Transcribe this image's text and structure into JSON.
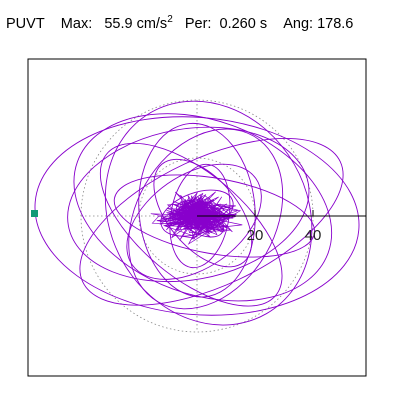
{
  "header": {
    "label": "PUVT",
    "max_label": "Max:",
    "max_value": "55.9",
    "max_unit_base": "cm/s",
    "max_unit_exp": "2",
    "per_label": "Per:",
    "per_value": "0.260 s",
    "ang_label": "Ang:",
    "ang_value": "178.6"
  },
  "chart_data": {
    "type": "polar",
    "title": "",
    "radial_ticks": [
      "20",
      "40"
    ],
    "radial_tick_values": [
      20,
      40
    ],
    "ring_values": [
      20,
      40
    ],
    "max": 55.9,
    "period_s": 0.26,
    "angle_deg": 178.6,
    "grid": "dotted",
    "series": [
      {
        "color": "#8800cc",
        "ellipses": [
          {
            "cx": 0,
            "cy": 0,
            "rx": 56,
            "ry": 34,
            "rot": 175
          },
          {
            "cx": 2,
            "cy": 3,
            "rx": 46,
            "ry": 30,
            "rot": 160
          },
          {
            "cx": 5,
            "cy": -2,
            "rx": 49,
            "ry": 22,
            "rot": 25
          },
          {
            "cx": -3,
            "cy": 4,
            "rx": 42,
            "ry": 26,
            "rot": 10
          },
          {
            "cx": 4,
            "cy": 1,
            "rx": 40,
            "ry": 34,
            "rot": 120
          },
          {
            "cx": -2,
            "cy": -3,
            "rx": 38,
            "ry": 18,
            "rot": 140
          },
          {
            "cx": 3,
            "cy": -1,
            "rx": 33,
            "ry": 24,
            "rot": 60
          },
          {
            "cx": 0,
            "cy": 2,
            "rx": 30,
            "ry": 20,
            "rot": 95
          },
          {
            "cx": 6,
            "cy": 0,
            "rx": 35,
            "ry": 13,
            "rot": 170
          },
          {
            "cx": -1,
            "cy": -2,
            "rx": 26,
            "ry": 16,
            "rot": 35
          },
          {
            "cx": 2,
            "cy": 1,
            "rx": 22,
            "ry": 12,
            "rot": 130
          },
          {
            "cx": 1,
            "cy": 0,
            "rx": 18,
            "ry": 10,
            "rot": 80
          },
          {
            "cx": 0,
            "cy": 1,
            "rx": 13,
            "ry": 7,
            "rot": 20
          },
          {
            "cx": 1,
            "cy": -1,
            "rx": 9,
            "ry": 5,
            "rot": 150
          }
        ]
      }
    ],
    "colors": {
      "trace": "#8800cc",
      "grid": "#888888",
      "axis": "#000000",
      "marker": "#119977"
    }
  }
}
